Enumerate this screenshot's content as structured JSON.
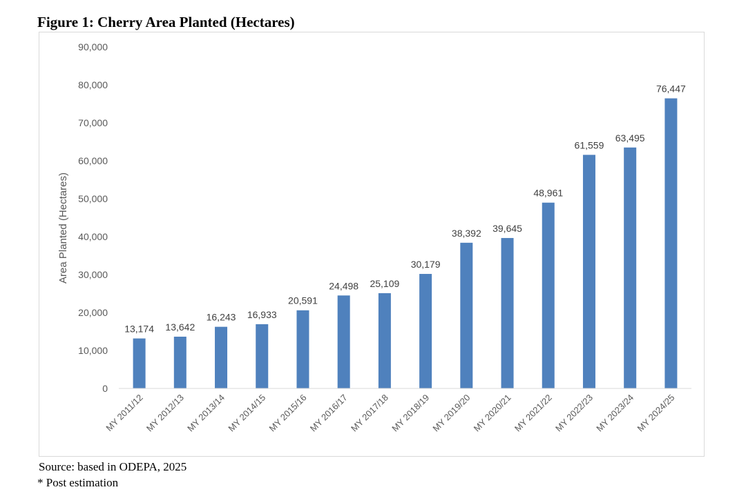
{
  "figure_title": "Figure 1: Cherry Area Planted (Hectares)",
  "source_note": "Source: based in ODEPA, 2025",
  "footnote": "* Post estimation",
  "colors": {
    "bar": "#4f81bd",
    "axis_text": "#595959",
    "label_text": "#404040",
    "frame": "#d9d9d9"
  },
  "chart_data": {
    "type": "bar",
    "title": "",
    "xlabel": "",
    "ylabel": "Area Planted (Hectares)",
    "ylim": [
      0,
      90000
    ],
    "yticks": [
      0,
      10000,
      20000,
      30000,
      40000,
      50000,
      60000,
      70000,
      80000,
      90000
    ],
    "ytick_labels": [
      "0",
      "10,000",
      "20,000",
      "30,000",
      "40,000",
      "50,000",
      "60,000",
      "70,000",
      "80,000",
      "90,000"
    ],
    "grid": false,
    "categories": [
      "MY 2011/12",
      "MY 2012/13",
      "MY 2013/14",
      "MY 2014/15",
      "MY 2015/16",
      "MY 2016/17",
      "MY 2017/18",
      "MY 2018/19",
      "MY 2019/20",
      "MY 2020/21",
      "MY 2021/22",
      "MY 2022/23",
      "MY 2023/24",
      "MY 2024/25"
    ],
    "values": [
      13174,
      13642,
      16243,
      16933,
      20591,
      24498,
      25109,
      30179,
      38392,
      39645,
      48961,
      61559,
      63495,
      76447
    ],
    "value_labels": [
      "13,174",
      "13,642",
      "16,243",
      "16,933",
      "20,591",
      "24,498",
      "25,109",
      "30,179",
      "38,392",
      "39,645",
      "48,961",
      "61,559",
      "63,495",
      "76,447"
    ]
  }
}
